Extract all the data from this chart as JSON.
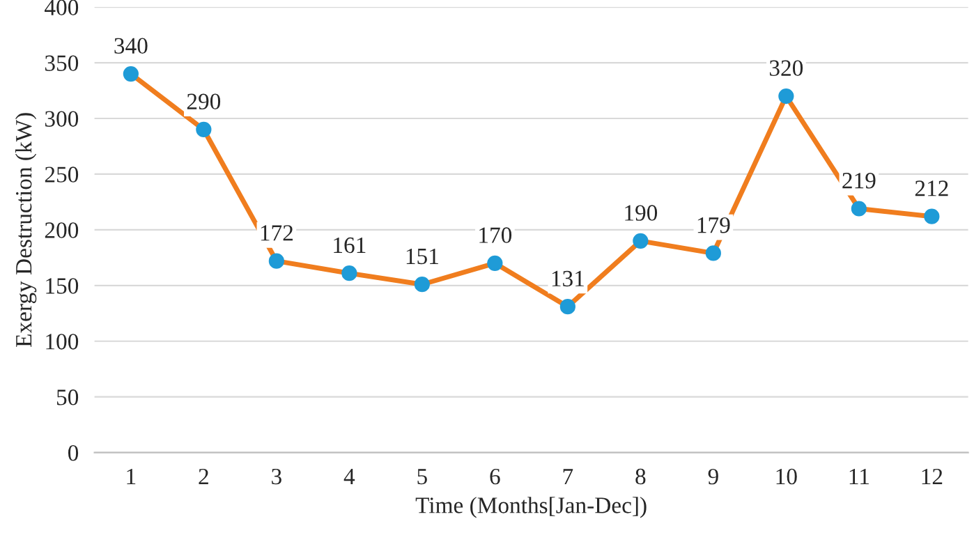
{
  "chart_data": {
    "type": "line",
    "xlabel": "Time (Months[Jan-Dec])",
    "ylabel": "Exergy Destruction (kW)",
    "categories": [
      "1",
      "2",
      "3",
      "4",
      "5",
      "6",
      "7",
      "8",
      "9",
      "10",
      "11",
      "12"
    ],
    "series": [
      {
        "color": "#f07d1e",
        "colors": [
          "#1f9bd7",
          "#1f9bd7",
          "#1f9bd7",
          "#1f9bd7",
          "#1f9bd7",
          "#1f9bd7",
          "#1f9bd7",
          "#1f9bd7",
          "#1f9bd7",
          "#1f9bd7",
          "#1f9bd7",
          "#1f9bd7"
        ],
        "values": [
          340,
          290,
          172,
          161,
          151,
          170,
          131,
          190,
          179,
          320,
          219,
          212
        ]
      }
    ],
    "marker": "circle",
    "line_style": "solid",
    "data_labels": true,
    "ylim": [
      0,
      400
    ],
    "yticks": [
      0,
      50,
      100,
      150,
      200,
      250,
      300,
      350,
      400
    ],
    "grid": "y"
  }
}
